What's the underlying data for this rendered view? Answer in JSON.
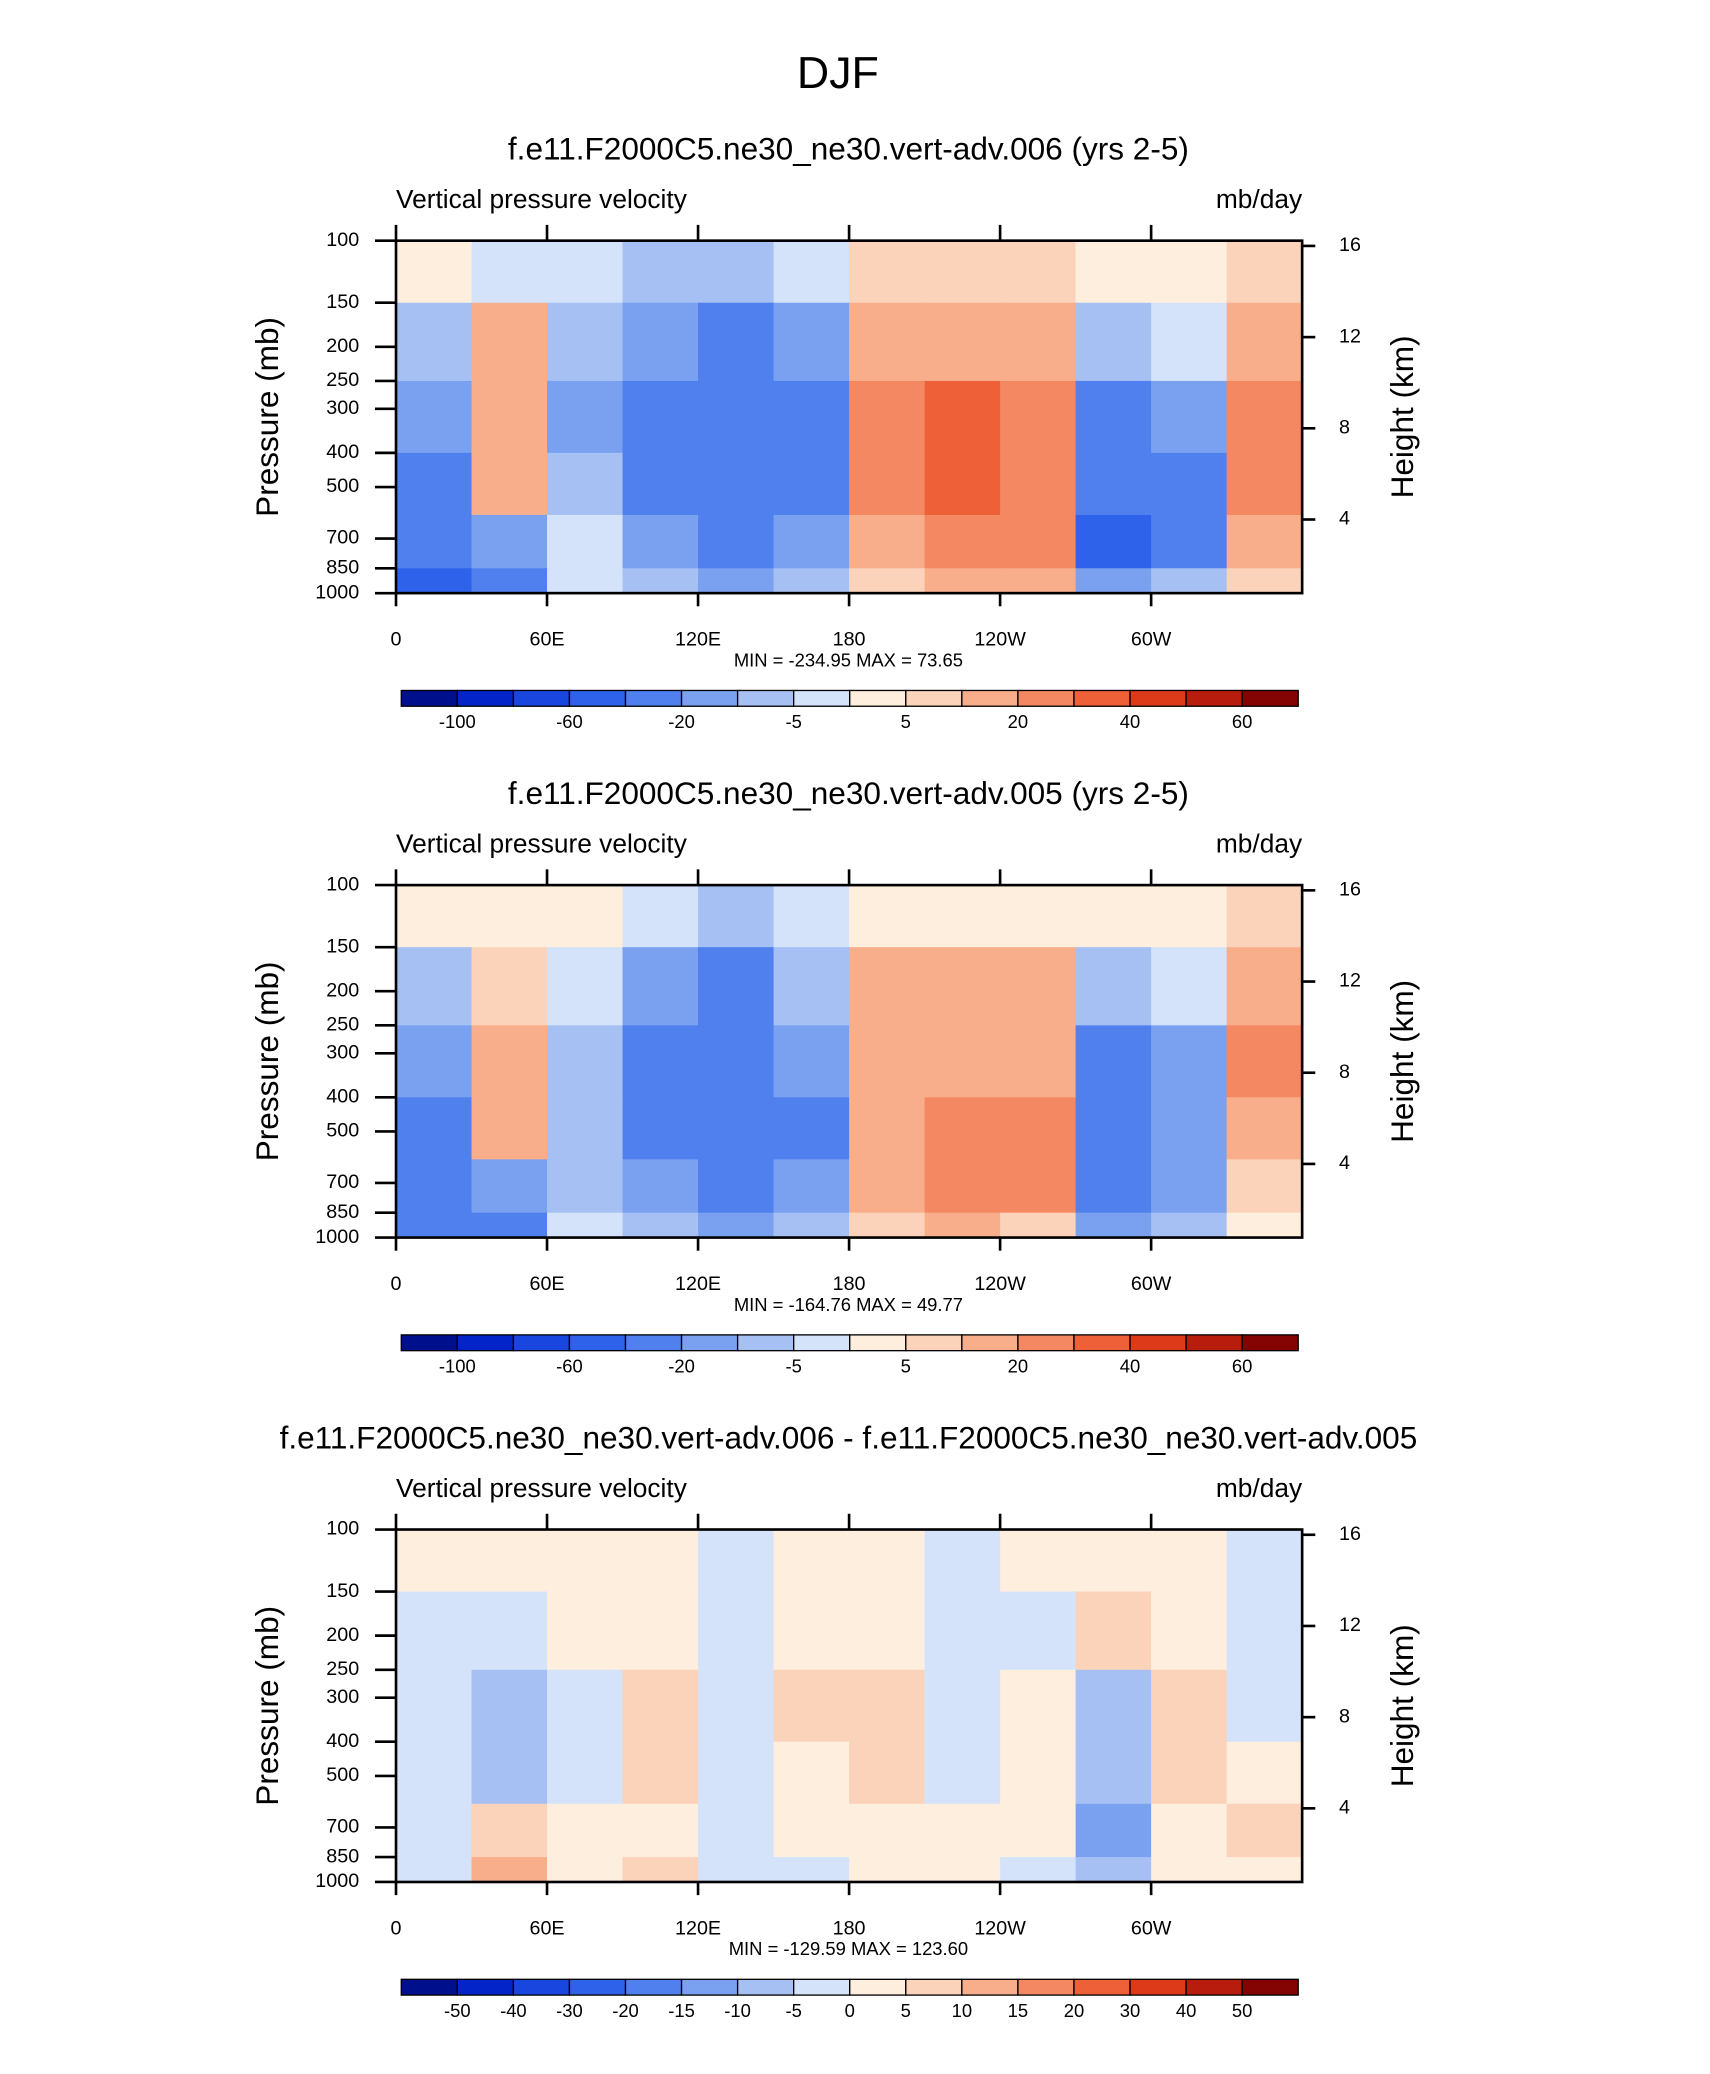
{
  "figure_title": "DJF",
  "chart_data": [
    {
      "type": "contour",
      "title": "f.e11.F2000C5.ne30_ne30.vert-adv.006 (yrs 2-5)",
      "subtitle": "Vertical pressure velocity",
      "units": "mb/day",
      "ylabel": "Pressure (mb)",
      "y2label": "Height (km)",
      "stats": "MIN = -234.95  MAX =  73.65",
      "xlim": [
        0,
        360
      ],
      "xticks": [
        0,
        {
          "value": 60,
          "label": "60E"
        },
        {
          "value": 120,
          "label": "120E"
        },
        180,
        {
          "value": 240,
          "label": "120W"
        },
        {
          "value": 300,
          "label": "60W"
        }
      ],
      "ylim": [
        1000,
        100
      ],
      "ylog": true,
      "yticks": [
        100,
        150,
        200,
        250,
        300,
        400,
        500,
        700,
        850,
        1000
      ],
      "y2lim": [
        0.77,
        16.23
      ],
      "y2ticks": [
        4,
        8,
        12,
        16
      ],
      "xbins": [
        0,
        30,
        60,
        90,
        120,
        150,
        180,
        210,
        240,
        270,
        300,
        330,
        360
      ],
      "ybins": [
        100,
        150,
        250,
        400,
        600,
        850,
        1000
      ],
      "values": [
        [
          3,
          -3,
          -5,
          -10,
          -10,
          -5,
          5,
          5,
          5,
          3,
          3,
          5
        ],
        [
          -10,
          10,
          -10,
          -20,
          -30,
          -15,
          15,
          15,
          15,
          -10,
          -5,
          15
        ],
        [
          -20,
          15,
          -15,
          -30,
          -40,
          -25,
          20,
          30,
          25,
          -30,
          -15,
          25
        ],
        [
          -30,
          10,
          -10,
          -25,
          -40,
          -30,
          20,
          30,
          25,
          -40,
          -25,
          20
        ],
        [
          -40,
          -20,
          -5,
          -15,
          -30,
          -20,
          15,
          25,
          25,
          -50,
          -25,
          10
        ],
        [
          -60,
          -40,
          -5,
          -10,
          -15,
          -10,
          5,
          10,
          10,
          -20,
          -10,
          5
        ]
      ],
      "levels": [
        -100,
        -80,
        -60,
        -40,
        -20,
        -10,
        -5,
        0,
        5,
        10,
        20,
        30,
        40,
        50,
        60
      ],
      "colorbar_ticks": [
        -100,
        -60,
        -20,
        -5,
        5,
        20,
        40,
        60
      ],
      "colors": [
        "#00108c",
        "#0324c8",
        "#1a46e0",
        "#2e62ea",
        "#4f80ee",
        "#7aa0f0",
        "#a6c0f4",
        "#d4e3fa",
        "#feeede",
        "#fbd3ba",
        "#f8ae8a",
        "#f48862",
        "#ee6038",
        "#dd3a1a",
        "#b81c0c",
        "#840404"
      ]
    },
    {
      "type": "contour",
      "title": "f.e11.F2000C5.ne30_ne30.vert-adv.005 (yrs 2-5)",
      "subtitle": "Vertical pressure velocity",
      "units": "mb/day",
      "ylabel": "Pressure (mb)",
      "y2label": "Height (km)",
      "stats": "MIN = -164.76  MAX =  49.77",
      "xlim": [
        0,
        360
      ],
      "xticks": [
        0,
        {
          "value": 60,
          "label": "60E"
        },
        {
          "value": 120,
          "label": "120E"
        },
        180,
        {
          "value": 240,
          "label": "120W"
        },
        {
          "value": 300,
          "label": "60W"
        }
      ],
      "ylim": [
        1000,
        100
      ],
      "ylog": true,
      "yticks": [
        100,
        150,
        200,
        250,
        300,
        400,
        500,
        700,
        850,
        1000
      ],
      "y2lim": [
        0.77,
        16.23
      ],
      "y2ticks": [
        4,
        8,
        12,
        16
      ],
      "xbins": [
        0,
        30,
        60,
        90,
        120,
        150,
        180,
        210,
        240,
        270,
        300,
        330,
        360
      ],
      "ybins": [
        100,
        150,
        250,
        400,
        600,
        850,
        1000
      ],
      "values": [
        [
          3,
          3,
          2,
          -5,
          -10,
          -3,
          3,
          3,
          3,
          2,
          3,
          5
        ],
        [
          -8,
          5,
          -5,
          -15,
          -25,
          -10,
          10,
          10,
          10,
          -10,
          -5,
          12
        ],
        [
          -20,
          10,
          -10,
          -30,
          -35,
          -20,
          15,
          15,
          15,
          -25,
          -15,
          20
        ],
        [
          -25,
          10,
          -10,
          -30,
          -40,
          -25,
          15,
          20,
          20,
          -30,
          -20,
          15
        ],
        [
          -25,
          -15,
          -8,
          -20,
          -30,
          -20,
          12,
          25,
          20,
          -35,
          -20,
          8
        ],
        [
          -40,
          -30,
          -5,
          -10,
          -15,
          -8,
          5,
          10,
          8,
          -15,
          -8,
          3
        ]
      ],
      "levels": [
        -100,
        -80,
        -60,
        -40,
        -20,
        -10,
        -5,
        0,
        5,
        10,
        20,
        30,
        40,
        50,
        60
      ],
      "colorbar_ticks": [
        -100,
        -60,
        -20,
        -5,
        5,
        20,
        40,
        60
      ],
      "colors": [
        "#00108c",
        "#0324c8",
        "#1a46e0",
        "#2e62ea",
        "#4f80ee",
        "#7aa0f0",
        "#a6c0f4",
        "#d4e3fa",
        "#feeede",
        "#fbd3ba",
        "#f8ae8a",
        "#f48862",
        "#ee6038",
        "#dd3a1a",
        "#b81c0c",
        "#840404"
      ]
    },
    {
      "type": "contour",
      "title": "f.e11.F2000C5.ne30_ne30.vert-adv.006 - f.e11.F2000C5.ne30_ne30.vert-adv.005",
      "subtitle": "Vertical pressure velocity",
      "units": "mb/day",
      "ylabel": "Pressure (mb)",
      "y2label": "Height (km)",
      "stats": "MIN = -129.59  MAX = 123.60",
      "xlim": [
        0,
        360
      ],
      "xticks": [
        0,
        {
          "value": 60,
          "label": "60E"
        },
        {
          "value": 120,
          "label": "120E"
        },
        180,
        {
          "value": 240,
          "label": "120W"
        },
        {
          "value": 300,
          "label": "60W"
        }
      ],
      "ylim": [
        1000,
        100
      ],
      "ylog": true,
      "yticks": [
        100,
        150,
        200,
        250,
        300,
        400,
        500,
        700,
        850,
        1000
      ],
      "y2lim": [
        0.77,
        16.23
      ],
      "y2ticks": [
        4,
        8,
        12,
        16
      ],
      "xbins": [
        0,
        30,
        60,
        90,
        120,
        150,
        180,
        210,
        240,
        270,
        300,
        330,
        360
      ],
      "ybins": [
        100,
        150,
        250,
        400,
        600,
        850,
        1000
      ],
      "values": [
        [
          2,
          2,
          2,
          2,
          -2,
          2,
          2,
          -2,
          2,
          2,
          2,
          -2
        ],
        [
          -3,
          -3,
          3,
          3,
          -3,
          3,
          3,
          -3,
          -2,
          5,
          3,
          -3
        ],
        [
          -5,
          -8,
          -3,
          5,
          -5,
          5,
          8,
          -5,
          2,
          -8,
          8,
          -5
        ],
        [
          -3,
          -10,
          -2,
          5,
          -3,
          3,
          5,
          -3,
          3,
          -10,
          5,
          2
        ],
        [
          -2,
          5,
          2,
          3,
          -5,
          2,
          2,
          2,
          3,
          -15,
          3,
          5
        ],
        [
          -3,
          10,
          2,
          5,
          -5,
          -2,
          2,
          3,
          -2,
          -10,
          2,
          3
        ]
      ],
      "levels": [
        -50,
        -40,
        -30,
        -20,
        -15,
        -10,
        -5,
        0,
        5,
        10,
        15,
        20,
        30,
        40,
        50
      ],
      "colorbar_ticks": [
        -50,
        -40,
        -30,
        -20,
        -15,
        -10,
        -5,
        0,
        5,
        10,
        15,
        20,
        30,
        40,
        50
      ],
      "colors": [
        "#00108c",
        "#0324c8",
        "#1a46e0",
        "#2e62ea",
        "#4f80ee",
        "#7aa0f0",
        "#a6c0f4",
        "#d4e3fa",
        "#feeede",
        "#fbd3ba",
        "#f8ae8a",
        "#f48862",
        "#ee6038",
        "#dd3a1a",
        "#b81c0c",
        "#840404"
      ]
    }
  ]
}
